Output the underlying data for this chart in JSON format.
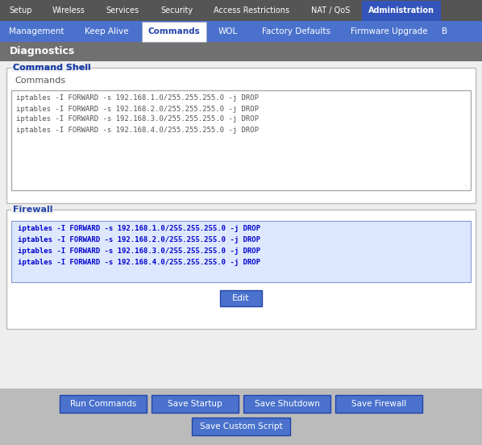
{
  "top_tabs": [
    "Setup",
    "Wireless",
    "Services",
    "Security",
    "Access Restrictions",
    "NAT / QoS",
    "Administration"
  ],
  "active_top_tab": "Administration",
  "sub_tabs": [
    "Management",
    "Keep Alive",
    "Commands",
    "WOL",
    "Factory Defaults",
    "Firmware Upgrade",
    "B"
  ],
  "active_sub_tab": "Commands",
  "section_title": "Diagnostics",
  "command_shell_label": "Command Shell",
  "commands_label": "Commands",
  "commands_text": [
    "iptables -I FORWARD -s 192.168.1.0/255.255.255.0 -j DROP",
    "iptables -I FORWARD -s 192.168.2.0/255.255.255.0 -j DROP",
    "iptables -I FORWARD -s 192.168.3.0/255.255.255.0 -j DROP",
    "iptables -I FORWARD -s 192.168.4.0/255.255.255.0 -j DROP"
  ],
  "firewall_label": "Firewall",
  "firewall_text": [
    "iptables -I FORWARD -s 192.168.1.0/255.255.255.0 -j DROP",
    "iptables -I FORWARD -s 192.168.2.0/255.255.255.0 -j DROP",
    "iptables -I FORWARD -s 192.168.3.0/255.255.255.0 -j DROP",
    "iptables -I FORWARD -s 192.168.4.0/255.255.255.0 -j DROP"
  ],
  "edit_button": "Edit",
  "bottom_buttons": [
    "Run Commands",
    "Save Startup",
    "Save Shutdown",
    "Save Firewall"
  ],
  "bottom_button2": "Save Custom Script",
  "bg_color": "#cccccc",
  "top_tab_bg": "#555555",
  "top_tab_active_bg": "#3355bb",
  "top_tab_text": "#ffffff",
  "sub_tab_bg": "#4a72cc",
  "sub_tab_active_bg": "#ffffff",
  "sub_tab_active_text": "#2244aa",
  "sub_tab_text": "#ffffff",
  "section_header_bg": "#707070",
  "section_header_text": "#ffffff",
  "content_bg": "#eeeeee",
  "box_bg": "#ffffff",
  "box_border": "#bbbbbb",
  "label_color": "#2244aa",
  "commands_text_color": "#555555",
  "button_bg": "#4a72cc",
  "button_text": "#ffffff",
  "firewall_text_color": "#0000cc",
  "firewall_box_bg": "#dde8ff"
}
